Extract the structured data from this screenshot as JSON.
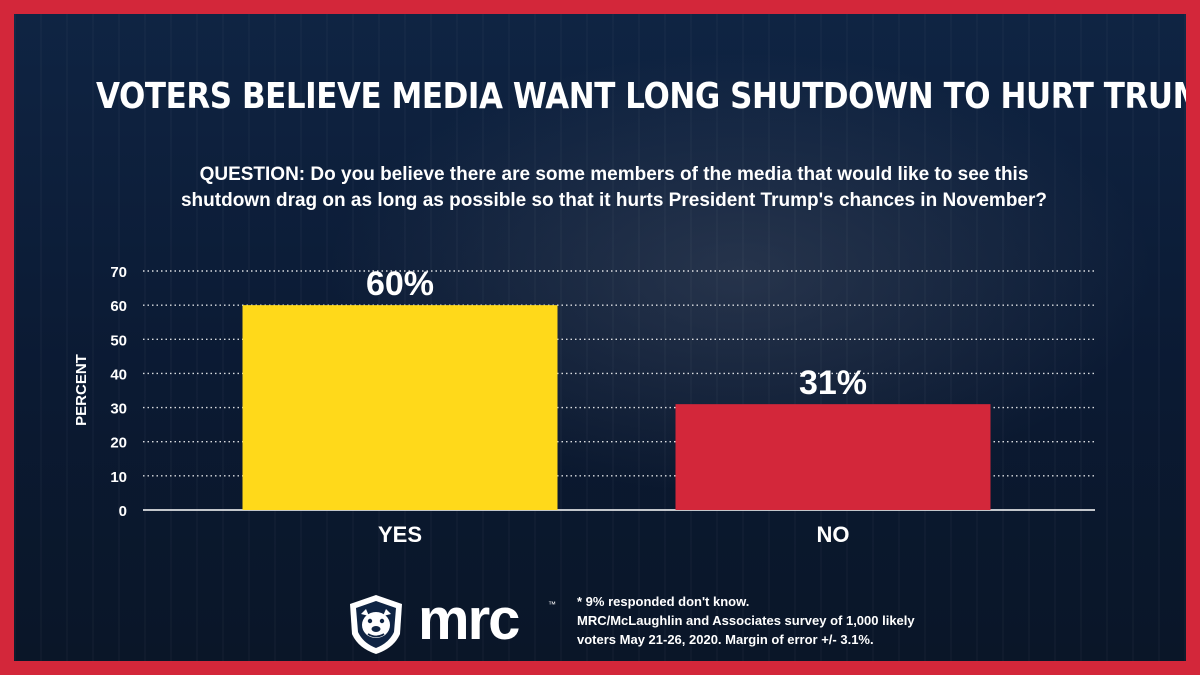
{
  "title": "VOTERS BELIEVE MEDIA WANT LONG SHUTDOWN TO HURT TRUMP",
  "question": {
    "line1": "QUESTION: Do you believe there are some members of the media that would like to see this",
    "line2": "shutdown drag on as long as possible so that it hurts President Trump's chances in November?"
  },
  "chart_data": {
    "type": "bar",
    "categories": [
      "YES",
      "NO"
    ],
    "values": [
      60,
      31
    ],
    "data_labels": [
      "60%",
      "31%"
    ],
    "ylabel": "PERCENT",
    "ylim": [
      0,
      70
    ],
    "yticks": [
      0,
      10,
      20,
      30,
      40,
      50,
      60,
      70
    ],
    "grid": true,
    "colors": [
      "#ffd91a",
      "#d3273a"
    ]
  },
  "logo": {
    "text": "mrc",
    "trademark": "™"
  },
  "footnote": {
    "line1": "* 9% responded don't know.",
    "line2": "MRC/McLaughlin and Associates survey of 1,000 likely",
    "line3": "voters May 21-26, 2020. Margin of error +/- 3.1%."
  },
  "colors": {
    "frame": "#d3273a",
    "background": "#0f2443",
    "text": "#ffffff"
  }
}
